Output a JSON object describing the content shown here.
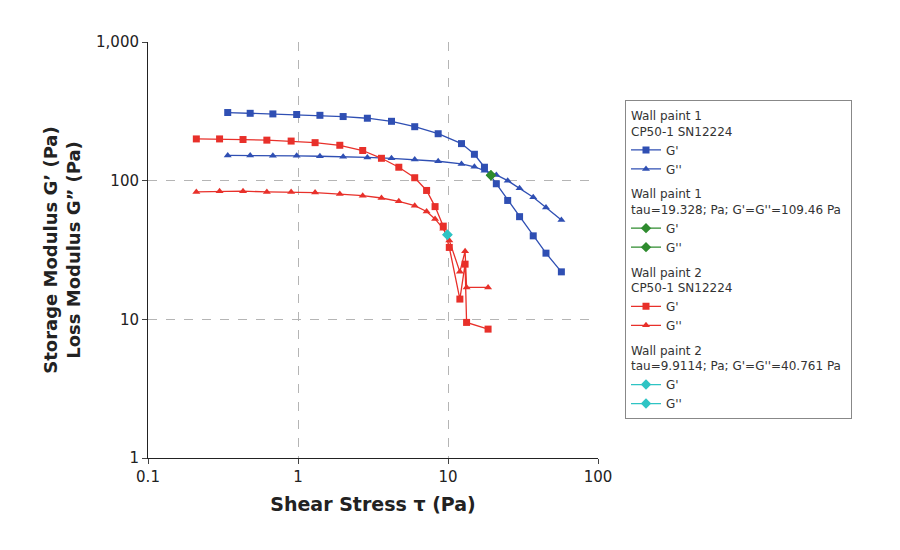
{
  "chart_data": {
    "type": "line",
    "xlabel": "Shear Stress τ (Pa)",
    "ylabel": [
      "Storage Modulus G’ (Pa)",
      "Loss Modulus G” (Pa)"
    ],
    "log": true,
    "grid": true,
    "legend": "right",
    "xlim": [
      0.1,
      100
    ],
    "ylim": [
      1,
      1000
    ],
    "xticks": [
      0.1,
      1,
      10,
      100
    ],
    "yticks": [
      1,
      10,
      100,
      {
        "value": 1000,
        "label": "1,000"
      }
    ],
    "groups": [
      {
        "title": [
          "Wall paint 1",
          "CP50-1 SN12224"
        ],
        "series": [
          {
            "name": "G'",
            "color": "#2f4fb3",
            "marker": "square",
            "x": [
              0.34,
              0.48,
              0.68,
              0.98,
              1.4,
              2.0,
              2.9,
              4.2,
              6.0,
              8.6,
              12.3,
              15.0,
              17.5,
              21.0,
              25.0,
              30,
              37,
              45,
              57
            ],
            "values": [
              310,
              306,
              303,
              300,
              296,
              290,
              282,
              268,
              245,
              218,
              185,
              155,
              125,
              95,
              72,
              55,
              40,
              30,
              22
            ]
          },
          {
            "name": "G''",
            "color": "#2f4fb3",
            "marker": "triangle-up",
            "x": [
              0.34,
              0.48,
              0.68,
              0.98,
              1.4,
              2.0,
              2.9,
              4.2,
              6.0,
              8.6,
              12.3,
              15.0,
              17.5,
              21.0,
              25.0,
              30,
              37,
              45,
              57
            ],
            "values": [
              152,
              152,
              151,
              151,
              150,
              149,
              147,
              145,
              142,
              138,
              132,
              126,
              118,
              110,
              100,
              88,
              76,
              64,
              52
            ]
          }
        ]
      },
      {
        "title": [
          "Wall paint 1",
          "tau=19.328; Pa; G'=G''=109.46 Pa"
        ],
        "series": [
          {
            "name": "G'",
            "color": "#2e8b2e",
            "marker": "diamond",
            "x": [
              19.328
            ],
            "values": [
              109.46
            ]
          },
          {
            "name": "G''",
            "color": "#2e8b2e",
            "marker": "diamond",
            "x": [
              19.328
            ],
            "values": [
              109.46
            ]
          }
        ]
      },
      {
        "title": [
          "Wall paint 2",
          "CP50-1 SN12224"
        ],
        "series": [
          {
            "name": "G'",
            "color": "#e8302a",
            "marker": "square",
            "x": [
              0.21,
              0.3,
              0.43,
              0.62,
              0.9,
              1.3,
              1.9,
              2.7,
              3.6,
              4.7,
              6.0,
              7.2,
              8.2,
              9.3,
              10.2,
              12.0,
              13.0,
              13.3,
              18.5
            ],
            "values": [
              200,
              200,
              198,
              196,
              193,
              188,
              180,
              165,
              145,
              125,
              105,
              85,
              65,
              47,
              33,
              14,
              25,
              9.5,
              8.5
            ]
          },
          {
            "name": "G''",
            "color": "#e8302a",
            "marker": "triangle-up",
            "x": [
              0.21,
              0.3,
              0.43,
              0.62,
              0.9,
              1.3,
              1.9,
              2.7,
              3.6,
              4.7,
              6.0,
              7.2,
              8.2,
              9.3,
              10.2,
              12.0,
              13.0,
              13.3,
              18.5
            ],
            "values": [
              83,
              84,
              84,
              83,
              83,
              82,
              80,
              78,
              75,
              71,
              66,
              60,
              53,
              45,
              37,
              22,
              31,
              17,
              17
            ]
          }
        ]
      },
      {
        "title": [
          "Wall paint 2",
          "tau=9.9114; Pa; G'=G''=40.761 Pa"
        ],
        "series": [
          {
            "name": "G'",
            "color": "#2ec4c4",
            "marker": "diamond",
            "x": [
              9.9114
            ],
            "values": [
              40.761
            ]
          },
          {
            "name": "G''",
            "color": "#2ec4c4",
            "marker": "diamond",
            "x": [
              9.9114
            ],
            "values": [
              40.761
            ]
          }
        ]
      }
    ]
  }
}
